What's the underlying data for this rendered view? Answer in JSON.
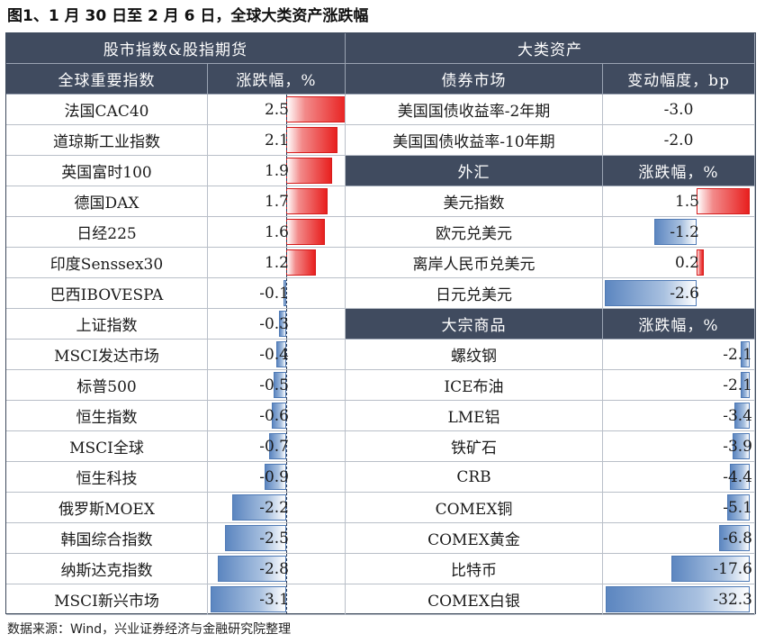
{
  "title": "图1、1 月 30 日至 2 月 6 日，全球大类资产涨跌幅",
  "source": "数据来源：Wind，兴业证券经济与金融研究院整理",
  "colors": {
    "header_bg": "#404b5f",
    "positive": "#e8201f",
    "negative": "#5c86c0"
  },
  "left": {
    "section": "股市指数&股指期货",
    "col_name": "全球重要指数",
    "col_value": "涨跌幅，%",
    "max_abs": 3.1
  },
  "right": {
    "section": "大类资产",
    "bond": {
      "col_name": "债券市场",
      "col_value": "变动幅度，bp"
    },
    "fx": {
      "col_name": "外汇",
      "col_value": "涨跌幅，%",
      "max_abs": 2.6
    },
    "commodity": {
      "col_name": "大宗商品",
      "col_value": "涨跌幅，%",
      "max_abs": 32.3
    }
  },
  "chart_data": [
    {
      "type": "bar",
      "title": "股市指数&股指期货",
      "categories": [
        "法国CAC40",
        "道琼斯工业指数",
        "英国富时100",
        "德国DAX",
        "日经225",
        "印度Senssex30",
        "巴西IBOVESPA",
        "上证指数",
        "MSCI发达市场",
        "标普500",
        "恒生指数",
        "MSCI全球",
        "恒生科技",
        "俄罗斯MOEX",
        "韩国综合指数",
        "纳斯达克指数",
        "MSCI新兴市场"
      ],
      "values": [
        2.5,
        2.1,
        1.9,
        1.7,
        1.6,
        1.2,
        -0.1,
        -0.3,
        -0.4,
        -0.5,
        -0.6,
        -0.7,
        -0.9,
        -2.2,
        -2.5,
        -2.8,
        -3.1
      ],
      "ylabel": "涨跌幅，%"
    },
    {
      "type": "table",
      "title": "债券市场",
      "categories": [
        "美国国债收益率-2年期",
        "美国国债收益率-10年期"
      ],
      "values": [
        -3.0,
        -2.0
      ],
      "ylabel": "变动幅度，bp"
    },
    {
      "type": "bar",
      "title": "外汇",
      "categories": [
        "美元指数",
        "欧元兑美元",
        "离岸人民币兑美元",
        "日元兑美元"
      ],
      "values": [
        1.5,
        -1.2,
        0.2,
        -2.6
      ],
      "ylabel": "涨跌幅，%"
    },
    {
      "type": "bar",
      "title": "大宗商品",
      "categories": [
        "螺纹钢",
        "ICE布油",
        "LME铝",
        "铁矿石",
        "CRB",
        "COMEX铜",
        "COMEX黄金",
        "比特币",
        "COMEX白银"
      ],
      "values": [
        -2.1,
        -2.1,
        -3.4,
        -3.9,
        -4.4,
        -5.1,
        -6.8,
        -17.6,
        -32.3
      ],
      "ylabel": "涨跌幅，%"
    }
  ]
}
